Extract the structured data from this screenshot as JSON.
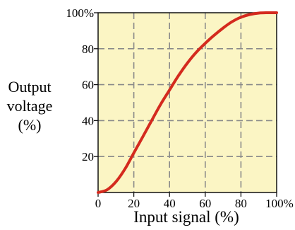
{
  "chart_data": {
    "type": "line",
    "title": "",
    "xlabel": "Input signal (%)",
    "ylabel_lines": [
      "Output",
      "voltage",
      "(%)"
    ],
    "xlim": [
      0,
      100
    ],
    "ylim": [
      0,
      100
    ],
    "x_ticks": [
      0,
      20,
      40,
      60,
      80,
      100
    ],
    "x_tick_labels": [
      "0",
      "20",
      "40",
      "60",
      "80",
      "100%"
    ],
    "y_ticks": [
      20,
      40,
      60,
      80,
      100
    ],
    "y_tick_labels": [
      "20",
      "40",
      "60",
      "80",
      "100%"
    ],
    "grid": true,
    "series": [
      {
        "x": [
          0,
          5,
          10,
          15,
          20,
          25,
          30,
          35,
          40,
          45,
          50,
          55,
          60,
          65,
          70,
          75,
          80,
          85,
          90,
          95,
          100
        ],
        "y": [
          0,
          1.5,
          6,
          13,
          22,
          31,
          40,
          49,
          57,
          65,
          72,
          78,
          83,
          87.5,
          91.5,
          95,
          97.5,
          99,
          99.8,
          100,
          100
        ]
      }
    ]
  },
  "colors": {
    "plot_background": "#fbf5c4",
    "grid": "#8a8a8a",
    "line": "#d42a1e",
    "axis": "#111111"
  }
}
